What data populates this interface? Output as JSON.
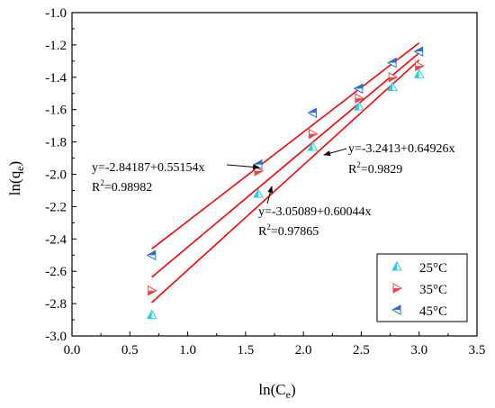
{
  "chart_data": {
    "type": "scatter",
    "xlabel": "ln(C",
    "xlabel_sub": "e",
    "xlabel_close": ")",
    "ylabel": "ln(q",
    "ylabel_sub": "e",
    "ylabel_close": ")",
    "xlim": [
      0.0,
      3.5
    ],
    "ylim": [
      -3.0,
      -1.0
    ],
    "x_ticks": [
      "0.0",
      "0.5",
      "1.0",
      "1.5",
      "2.0",
      "2.5",
      "3.0",
      "3.5"
    ],
    "y_ticks": [
      "-1.0",
      "-1.2",
      "-1.4",
      "-1.6",
      "-1.8",
      "-2.0",
      "-2.2",
      "-2.4",
      "-2.6",
      "-2.8",
      "-3.0"
    ],
    "legend_position": "bottom-right",
    "grid": false,
    "series": [
      {
        "name": "25°C",
        "color": "#22d3e6",
        "marker": "triangle-up",
        "points": [
          [
            0.69,
            -2.87
          ],
          [
            1.61,
            -2.12
          ],
          [
            2.08,
            -1.83
          ],
          [
            2.48,
            -1.58
          ],
          [
            2.77,
            -1.46
          ],
          [
            3.0,
            -1.38
          ]
        ],
        "fit": {
          "intercept": -3.2413,
          "slope": 0.64926
        }
      },
      {
        "name": "35°C",
        "color": "#e8474c",
        "marker": "triangle-right",
        "points": [
          [
            0.69,
            -2.72
          ],
          [
            1.61,
            -1.98
          ],
          [
            2.08,
            -1.75
          ],
          [
            2.48,
            -1.53
          ],
          [
            2.77,
            -1.4
          ],
          [
            3.0,
            -1.33
          ]
        ],
        "fit": {
          "intercept": -3.05089,
          "slope": 0.60044
        }
      },
      {
        "name": "45°C",
        "color": "#2a6fd6",
        "marker": "triangle-left",
        "points": [
          [
            0.69,
            -2.5
          ],
          [
            1.61,
            -1.94
          ],
          [
            2.08,
            -1.62
          ],
          [
            2.48,
            -1.47
          ],
          [
            2.77,
            -1.31
          ],
          [
            3.0,
            -1.24
          ]
        ],
        "fit": {
          "intercept": -2.84187,
          "slope": 0.55154
        }
      }
    ],
    "fit_color": "#ff0000",
    "fit_x_range": [
      0.69,
      3.0
    ],
    "annotations": [
      {
        "equation": "y=-2.84187+0.55154x",
        "r2_label": "R",
        "r2_value": "=0.98982"
      },
      {
        "equation": "y=-3.05089+0.60044x",
        "r2_label": "R",
        "r2_value": "=0.97865"
      },
      {
        "equation": "y=-3.2413+0.64926x",
        "r2_label": "R",
        "r2_value": "=0.9829"
      }
    ]
  }
}
